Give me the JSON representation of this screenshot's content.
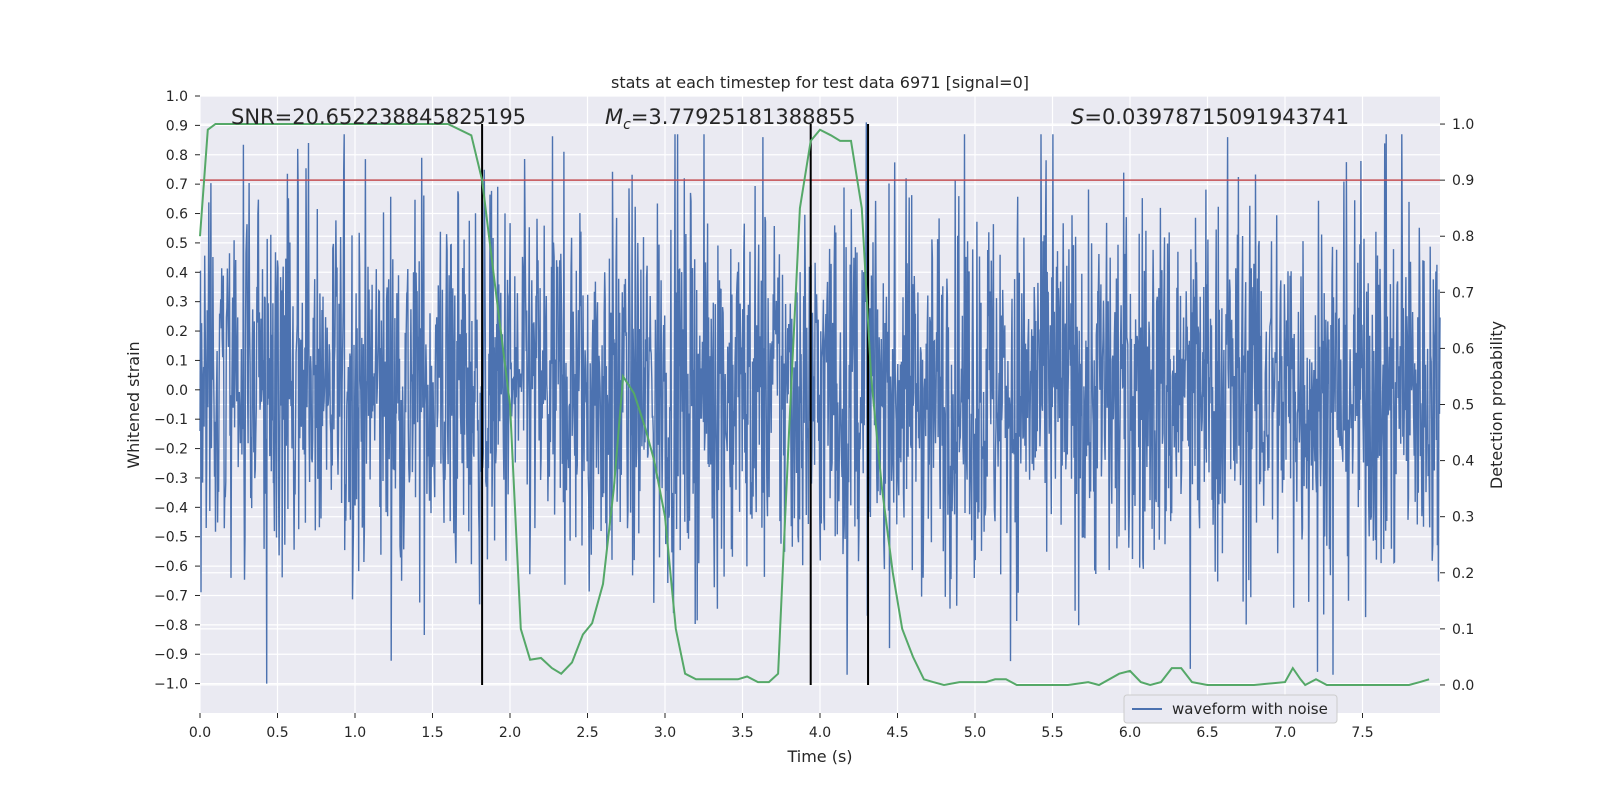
{
  "chart_data": {
    "type": "line",
    "title": "stats at each timestep for test data 6971 [signal=0]",
    "xlabel": "Time (s)",
    "ylabel_left": "Whitened strain",
    "ylabel_right": "Detection probability",
    "xlim": [
      0,
      8.0
    ],
    "ylim_left": [
      -1.1,
      1.0
    ],
    "ylim_right": [
      -0.05,
      1.05
    ],
    "x_ticks": [
      "0.0",
      "0.5",
      "1.0",
      "1.5",
      "2.0",
      "2.5",
      "3.0",
      "3.5",
      "4.0",
      "4.5",
      "5.0",
      "5.5",
      "6.0",
      "6.5",
      "7.0",
      "7.5"
    ],
    "y_left_ticks": [
      "1.0",
      "0.9",
      "0.8",
      "0.7",
      "0.6",
      "0.5",
      "0.4",
      "0.3",
      "0.2",
      "0.1",
      "0.0",
      "−0.1",
      "−0.2",
      "−0.3",
      "−0.4",
      "−0.5",
      "−0.6",
      "−0.7",
      "−0.8",
      "−0.9",
      "−1.0"
    ],
    "y_right_ticks": [
      "1.0",
      "0.9",
      "0.8",
      "0.7",
      "0.6",
      "0.5",
      "0.4",
      "0.3",
      "0.2",
      "0.1",
      "0.0"
    ],
    "annotations": {
      "snr": "SNR=20.652238845825195",
      "mc_symbol": "M",
      "mc_sub": "c",
      "mc_value": "=3.77925181388855",
      "s_symbol": "S",
      "s_value": "=0.03978715091943741"
    },
    "threshold_right": 0.9,
    "vlines_x": [
      1.82,
      3.94,
      4.31
    ],
    "waveform_series": {
      "name": "waveform with noise",
      "color": "#4c72b0",
      "description_envelope": "dense noise between approx -0.6 and 0.55 with spikes to about +0.85 and -1.0",
      "peak_spikes": [
        {
          "x": 0.43,
          "y": -1.0
        },
        {
          "x": 0.63,
          "y": 0.82
        },
        {
          "x": 0.7,
          "y": 0.84
        },
        {
          "x": 1.43,
          "y": 0.79
        },
        {
          "x": 3.63,
          "y": 0.86
        },
        {
          "x": 4.3,
          "y": 0.91
        },
        {
          "x": 6.39,
          "y": -0.95
        },
        {
          "x": 6.63,
          "y": 0.86
        },
        {
          "x": 7.21,
          "y": -0.96
        }
      ]
    },
    "probability_series": {
      "name": "",
      "color": "#55a868",
      "x": [
        0.0,
        0.05,
        0.1,
        0.2,
        0.4,
        0.6,
        0.8,
        1.0,
        1.2,
        1.4,
        1.6,
        1.75,
        1.82,
        1.9,
        2.0,
        2.07,
        2.13,
        2.2,
        2.27,
        2.33,
        2.4,
        2.47,
        2.53,
        2.6,
        2.67,
        2.73,
        2.8,
        2.87,
        2.93,
        3.0,
        3.07,
        3.13,
        3.2,
        3.27,
        3.33,
        3.4,
        3.47,
        3.53,
        3.6,
        3.67,
        3.73,
        3.8,
        3.87,
        3.94,
        4.0,
        4.07,
        4.13,
        4.2,
        4.27,
        4.33,
        4.4,
        4.47,
        4.53,
        4.6,
        4.67,
        4.73,
        4.8,
        4.9,
        5.0,
        5.07,
        5.13,
        5.2,
        5.27,
        5.4,
        5.6,
        5.73,
        5.8,
        5.93,
        6.0,
        6.07,
        6.13,
        6.2,
        6.27,
        6.33,
        6.4,
        6.5,
        6.6,
        6.8,
        7.0,
        7.05,
        7.1,
        7.13,
        7.2,
        7.27,
        7.33,
        7.4,
        7.5,
        7.7,
        7.8,
        7.87,
        7.93
      ],
      "y": [
        0.8,
        0.99,
        1.0,
        1.0,
        1.0,
        1.0,
        1.0,
        1.0,
        1.0,
        1.0,
        1.0,
        0.98,
        0.9,
        0.72,
        0.5,
        0.1,
        0.045,
        0.048,
        0.03,
        0.02,
        0.04,
        0.09,
        0.11,
        0.18,
        0.35,
        0.55,
        0.52,
        0.46,
        0.4,
        0.3,
        0.1,
        0.02,
        0.01,
        0.01,
        0.01,
        0.01,
        0.01,
        0.015,
        0.005,
        0.005,
        0.02,
        0.45,
        0.85,
        0.97,
        0.99,
        0.98,
        0.97,
        0.97,
        0.85,
        0.55,
        0.35,
        0.2,
        0.1,
        0.05,
        0.01,
        0.005,
        0.0,
        0.005,
        0.005,
        0.005,
        0.01,
        0.01,
        0.0,
        0.0,
        0.0,
        0.005,
        0.0,
        0.02,
        0.025,
        0.005,
        0.0,
        0.005,
        0.03,
        0.03,
        0.005,
        0.0,
        0.0,
        0.0,
        0.005,
        0.03,
        0.01,
        0.0,
        0.01,
        0.0,
        0.0,
        0.0,
        0.0,
        0.0,
        0.0,
        0.005,
        0.01
      ]
    },
    "threshold_color": "#c44e52",
    "grid": true,
    "legend_position": "bottom-right"
  }
}
